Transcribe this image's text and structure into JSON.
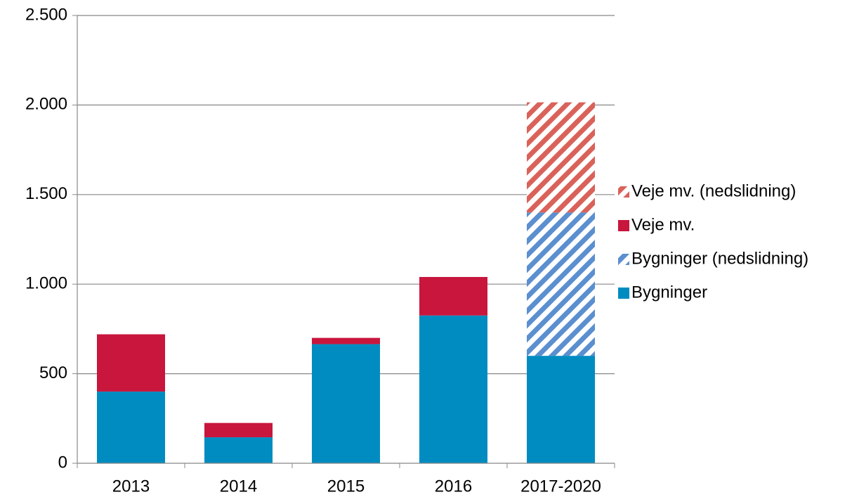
{
  "chart_data": {
    "type": "stacked_bar",
    "categories": [
      "2013",
      "2014",
      "2015",
      "2016",
      "2017-2020"
    ],
    "series": [
      {
        "name": "Bygninger",
        "color": "#008cc1",
        "pattern": "solid",
        "values": [
          400,
          145,
          665,
          825,
          600
        ]
      },
      {
        "name": "Bygninger (nedslidning)",
        "color": "#5b8fcf",
        "pattern": "hatch",
        "values": [
          null,
          null,
          null,
          null,
          800
        ]
      },
      {
        "name": "Veje mv.",
        "color": "#c8163d",
        "pattern": "solid",
        "values": [
          320,
          80,
          35,
          215,
          null
        ]
      },
      {
        "name": "Veje mv. (nedslidning)",
        "color": "#d9625a",
        "pattern": "hatch",
        "values": [
          null,
          null,
          null,
          null,
          615
        ]
      }
    ],
    "ylim": [
      0,
      2500
    ],
    "yticks": [
      0,
      500,
      {
        "value": 1000,
        "label": "1.000"
      },
      {
        "value": 1500,
        "label": "1.500"
      },
      {
        "value": 2000,
        "label": "2.000"
      },
      {
        "value": 2500,
        "label": "2.500"
      }
    ],
    "grid": true,
    "legend": "right"
  }
}
